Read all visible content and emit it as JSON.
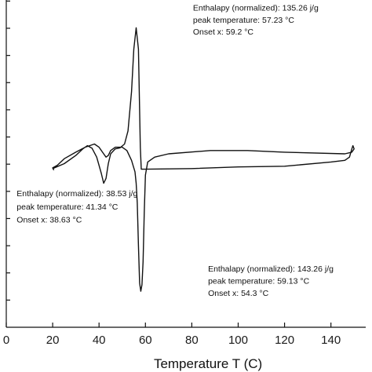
{
  "chart_data": {
    "type": "line",
    "xlabel": "Temperature T (C)",
    "ylabel": "",
    "title": "",
    "xlim": [
      0,
      155
    ],
    "ylim": [
      0,
      1
    ],
    "grid": false,
    "x_ticks": [
      0,
      20,
      40,
      60,
      80,
      100,
      120,
      140
    ],
    "x_tick_labels": [
      "0",
      "20",
      "40",
      "60",
      "80",
      "100",
      "120",
      "140"
    ],
    "y_tick_count": 12,
    "line_color": "#111111",
    "series": [
      {
        "values": [
          [
            20,
            0.485
          ],
          [
            25,
            0.5
          ],
          [
            30,
            0.525
          ],
          [
            33,
            0.545
          ],
          [
            35,
            0.555
          ],
          [
            37,
            0.547
          ],
          [
            39,
            0.52
          ],
          [
            41,
            0.47
          ],
          [
            42,
            0.44
          ],
          [
            43,
            0.455
          ],
          [
            44,
            0.5
          ],
          [
            45,
            0.53
          ],
          [
            47,
            0.545
          ],
          [
            49,
            0.548
          ],
          [
            51,
            0.56
          ],
          [
            52.5,
            0.6
          ],
          [
            54,
            0.72
          ],
          [
            55,
            0.85
          ],
          [
            56,
            0.915
          ],
          [
            57,
            0.85
          ],
          [
            57.8,
            0.55
          ],
          [
            58.2,
            0.483
          ],
          [
            60,
            0.483
          ],
          [
            80,
            0.485
          ],
          [
            100,
            0.49
          ],
          [
            120,
            0.492
          ],
          [
            140,
            0.505
          ],
          [
            146,
            0.51
          ],
          [
            148,
            0.52
          ],
          [
            149,
            0.545
          ],
          [
            149.5,
            0.555
          ],
          [
            150,
            0.545
          ],
          [
            149,
            0.535
          ],
          [
            146,
            0.53
          ],
          [
            120,
            0.535
          ],
          [
            104,
            0.54
          ],
          [
            88,
            0.54
          ],
          [
            70,
            0.53
          ],
          [
            64,
            0.52
          ],
          [
            61,
            0.505
          ],
          [
            60,
            0.465
          ],
          [
            59.5,
            0.35
          ],
          [
            59,
            0.2
          ],
          [
            58.5,
            0.13
          ],
          [
            58,
            0.11
          ],
          [
            57.5,
            0.135
          ],
          [
            57,
            0.25
          ],
          [
            56.5,
            0.38
          ],
          [
            56,
            0.44
          ],
          [
            55.5,
            0.475
          ],
          [
            54,
            0.51
          ],
          [
            52,
            0.54
          ],
          [
            50,
            0.55
          ],
          [
            47,
            0.55
          ],
          [
            45,
            0.54
          ],
          [
            44,
            0.525
          ],
          [
            43,
            0.52
          ],
          [
            42,
            0.53
          ],
          [
            40,
            0.55
          ],
          [
            38,
            0.56
          ],
          [
            34,
            0.55
          ],
          [
            30,
            0.535
          ],
          [
            25,
            0.515
          ],
          [
            22,
            0.495
          ],
          [
            20,
            0.487
          ],
          [
            20.5,
            0.48
          ]
        ]
      }
    ],
    "annotations": [
      {
        "lines": [
          "Enthalapy (normalized): 135.26 j/g",
          "peak temperature: 57.23 °C",
          "Onset x: 59.2 °C"
        ],
        "anchor": [
          80.5,
          0.968
        ],
        "line_step": 0.037
      },
      {
        "lines": [
          "Enthalapy (normalized): 38.53 j/g",
          "peak temperature: 41.34 °C",
          "Onset x: 38.63 °C"
        ],
        "anchor": [
          4.5,
          0.4
        ],
        "line_step": 0.04
      },
      {
        "lines": [
          "Enthalapy (normalized): 143.26 j/g",
          "peak temperature: 59.13 °C",
          "Onset x: 54.3 °C"
        ],
        "anchor": [
          87,
          0.17
        ],
        "line_step": 0.037
      }
    ]
  }
}
